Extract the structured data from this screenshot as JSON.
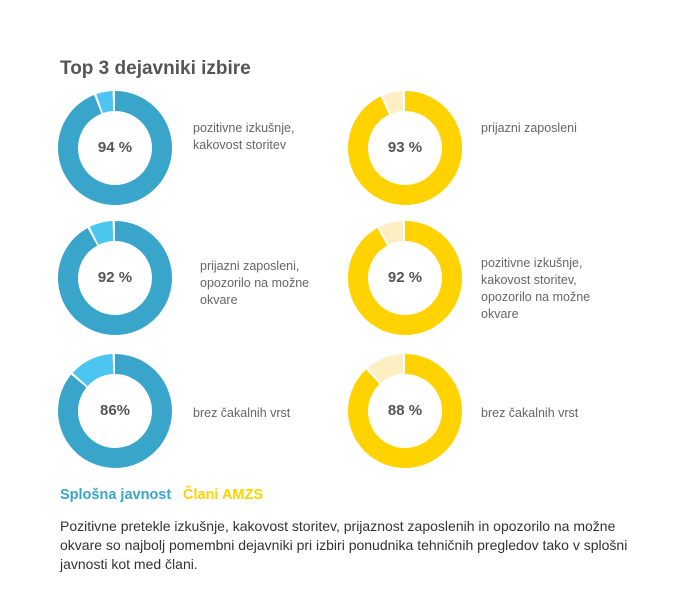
{
  "title": "Top 3 dejavniki izbire",
  "chart_data": {
    "type": "donut",
    "title": "Top 3 dejavniki izbire",
    "series": [
      {
        "name": "Splošna javnost",
        "color": "#39a5cb",
        "rest_color": "#4cc6f1",
        "items": [
          {
            "value": 94,
            "value_label": "94 %",
            "label": "pozitivne izkušnje, kakovost storitev"
          },
          {
            "value": 92,
            "value_label": "92 %",
            "label": "prijazni zaposleni, opozorilo na možne okvare"
          },
          {
            "value": 86,
            "value_label": "86%",
            "label": "brez čakalnih vrst"
          }
        ]
      },
      {
        "name": "Člani AMZS",
        "color": "#ffd200",
        "rest_color": "#fdeec4",
        "items": [
          {
            "value": 93,
            "value_label": "93 %",
            "label": "prijazni zaposleni"
          },
          {
            "value": 92,
            "value_label": "92 %",
            "label": "pozitivne izkušnje, kakovost storitev, opozorilo na možne okvare"
          },
          {
            "value": 88,
            "value_label": "88 %",
            "label": "brez čakalnih vrst"
          }
        ]
      }
    ]
  },
  "legend": {
    "general": "Splošna javnost",
    "members": "Člani AMZS"
  },
  "description": "Pozitivne pretekle izkušnje, kakovost storitev, prijaznost zaposlenih in opozorilo na možne okvare so najbolj pomembni dejavniki pri izbiri ponudnika tehničnih pregledov tako v splošni javnosti kot med člani."
}
